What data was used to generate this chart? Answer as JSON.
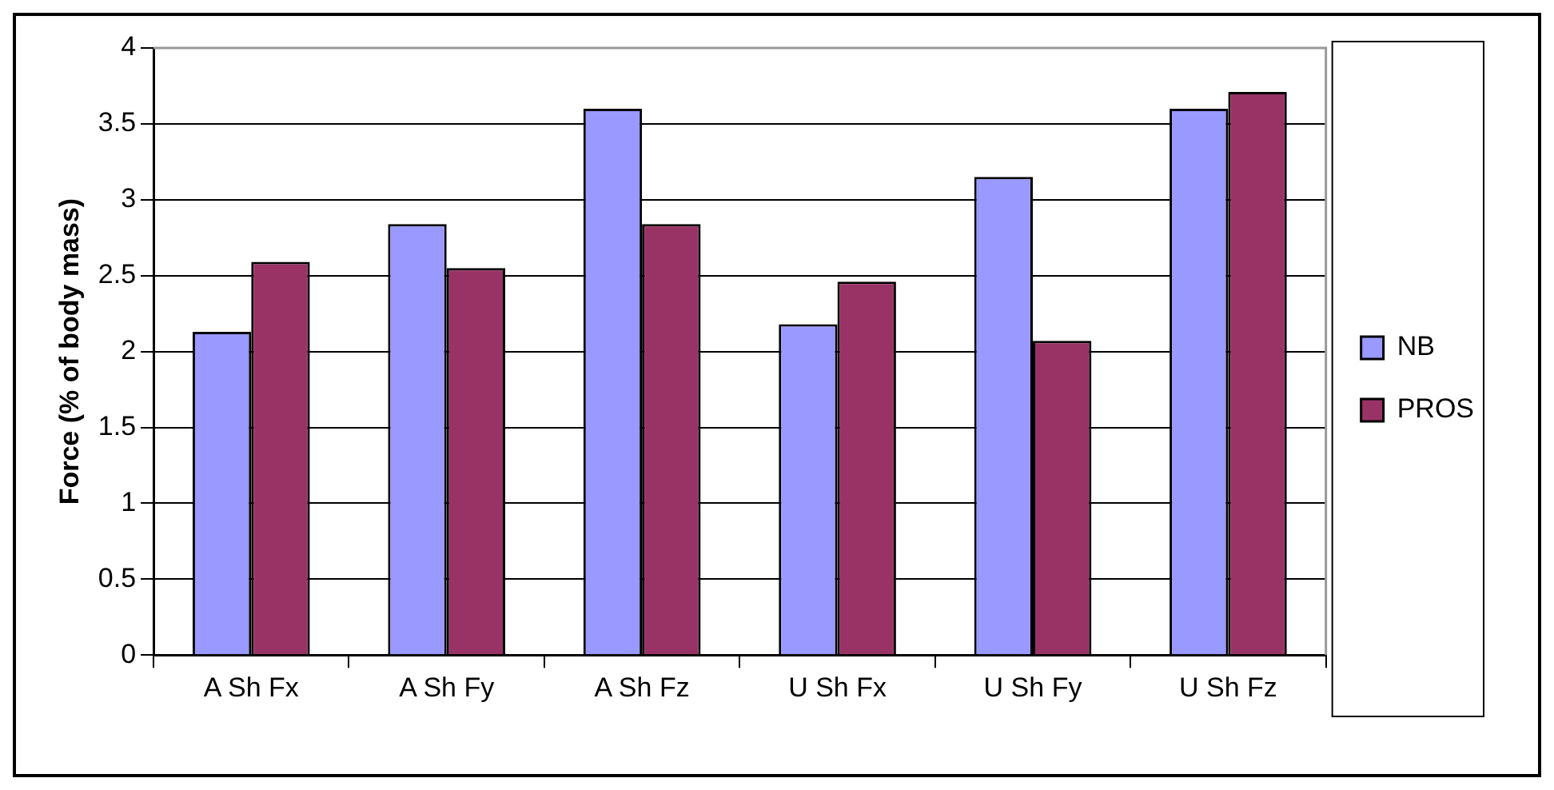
{
  "chart_data": {
    "type": "bar",
    "ylabel": "Force (% of body mass)",
    "categories": [
      "A Sh Fx",
      "A Sh Fy",
      "A Sh Fz",
      "U Sh Fx",
      "U Sh Fy",
      "U Sh Fz"
    ],
    "series": [
      {
        "name": "NB",
        "color": "#9999ff",
        "values": [
          2.13,
          2.84,
          3.6,
          2.18,
          3.15,
          3.6
        ]
      },
      {
        "name": "PROS",
        "color": "#993366",
        "values": [
          2.59,
          2.55,
          2.84,
          2.46,
          2.07,
          3.71
        ]
      }
    ],
    "ylim": [
      0,
      4
    ],
    "yticks": [
      0,
      0.5,
      1,
      1.5,
      2,
      2.5,
      3,
      3.5,
      4
    ],
    "grid": "y",
    "legend": "right"
  }
}
